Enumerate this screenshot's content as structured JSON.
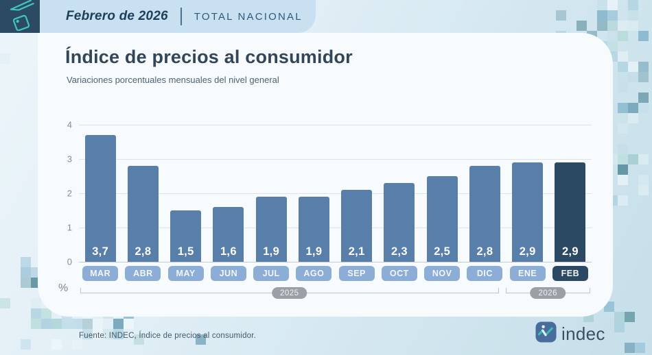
{
  "header": {
    "period": "Febrero de 2026",
    "scope": "TOTAL NACIONAL"
  },
  "card": {
    "title": "Índice de precios al consumidor",
    "subtitle": "Variaciones porcentuales mensuales del nivel general"
  },
  "chart_data": {
    "type": "bar",
    "title": "Índice de precios al consumidor",
    "subtitle": "Variaciones porcentuales mensuales del nivel general",
    "unit": "%",
    "categories": [
      "MAR",
      "ABR",
      "MAY",
      "JUN",
      "JUL",
      "AGO",
      "SEP",
      "OCT",
      "NOV",
      "DIC",
      "ENE",
      "FEB"
    ],
    "values": [
      3.7,
      2.8,
      1.5,
      1.6,
      1.9,
      1.9,
      2.1,
      2.3,
      2.5,
      2.8,
      2.9,
      2.9
    ],
    "value_labels": [
      "3,7",
      "2,8",
      "1,5",
      "1,6",
      "1,9",
      "1,9",
      "2,1",
      "2,3",
      "2,5",
      "2,8",
      "2,9",
      "2,9"
    ],
    "highlight_index": 11,
    "y_ticks": [
      0,
      1,
      2,
      3,
      4
    ],
    "ylim": [
      0,
      4
    ],
    "grid": true,
    "year_groups": [
      {
        "label": "2025",
        "months": 10
      },
      {
        "label": "2026",
        "months": 2
      }
    ],
    "colors": {
      "bar": "#587fa9",
      "bar_highlight": "#2c4963",
      "month_pill": "#8badd6",
      "month_pill_highlight": "#2c4963",
      "year_pill": "#9aa0a5",
      "value_text": "#ffffff"
    }
  },
  "footer": {
    "source": "Fuente: INDEC, Índice de precios al consumidor.",
    "logo_text": "indec"
  },
  "brand": {
    "accent": "#3ec6c0",
    "dark": "#2d4a63"
  }
}
